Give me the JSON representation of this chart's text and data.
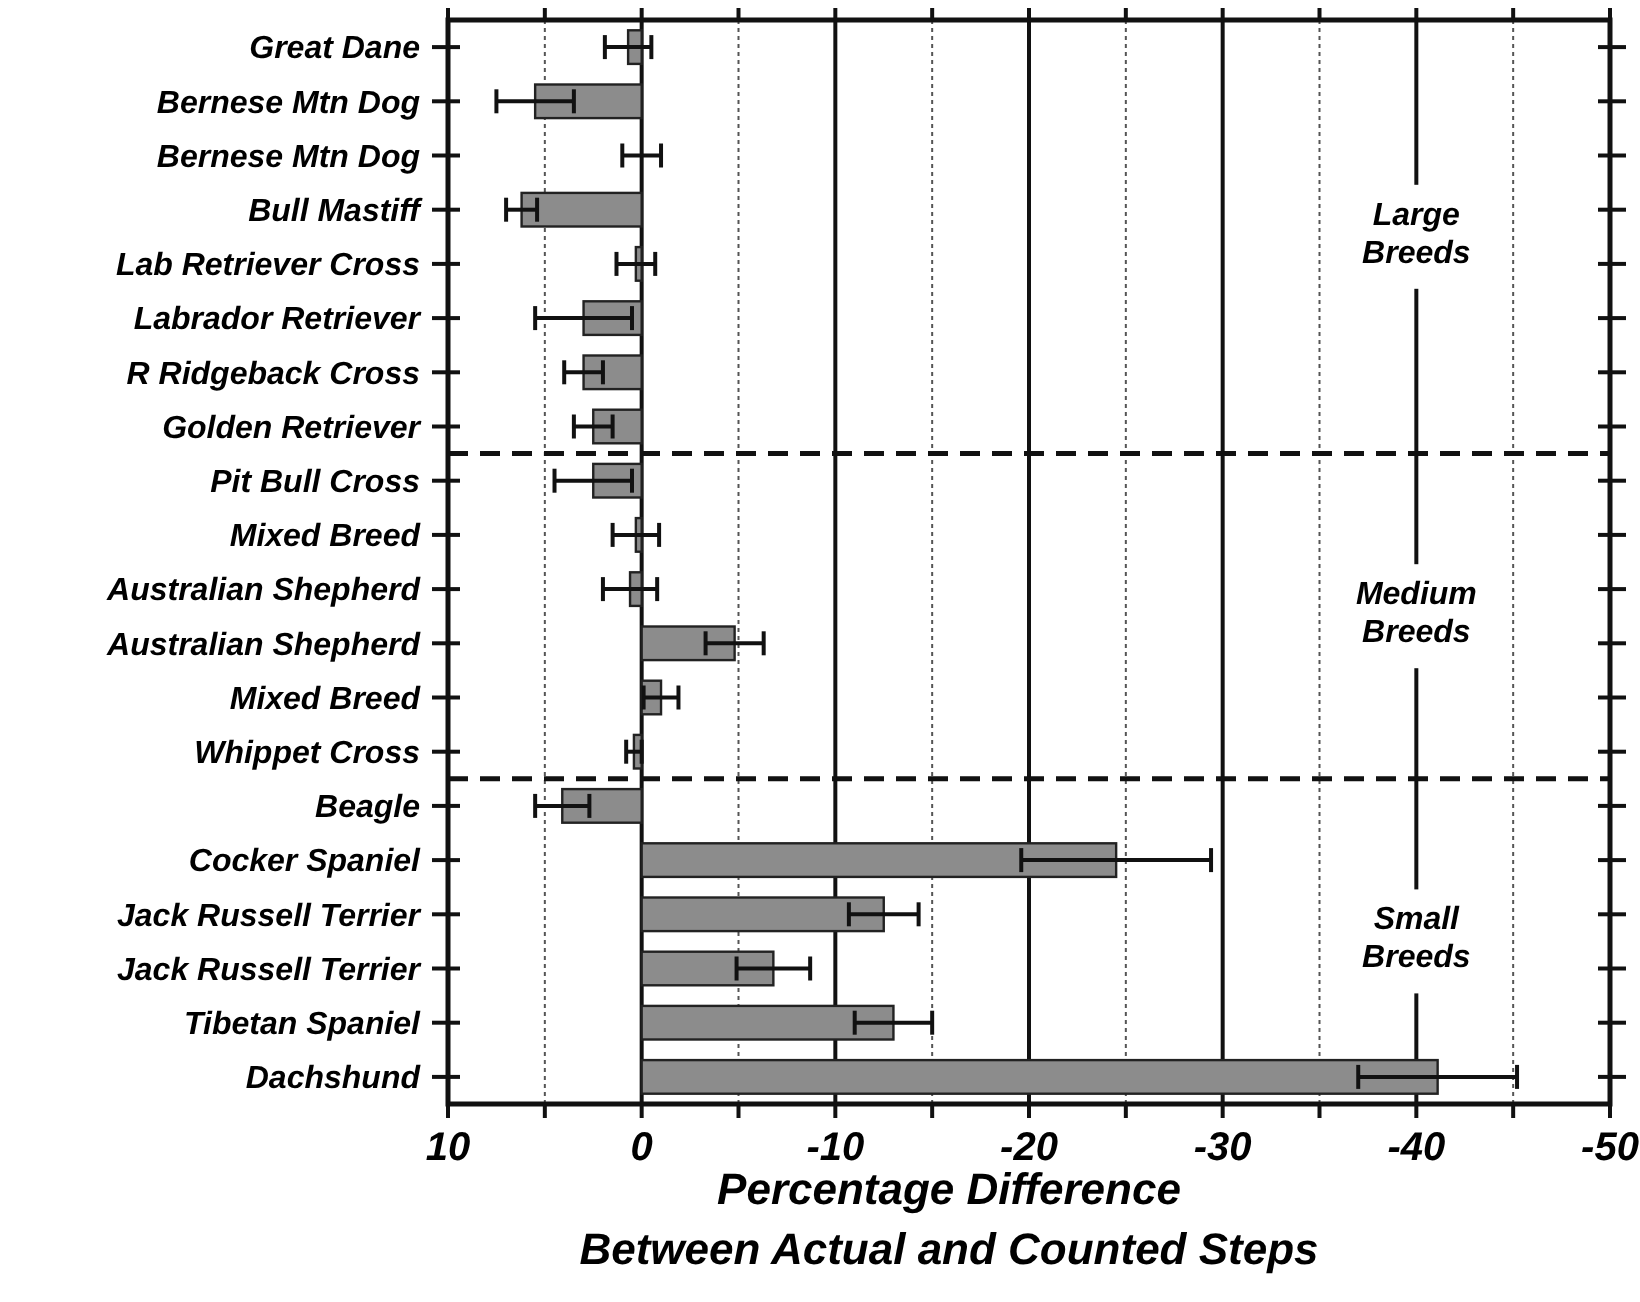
{
  "chart_data": {
    "type": "bar",
    "orientation": "horizontal",
    "xlabel": "Percentage Difference\nBetween Actual and Counted Steps",
    "categories": [
      "Great Dane",
      "Bernese Mtn Dog",
      "Bernese Mtn Dog",
      "Bull Mastiff",
      "Lab Retriever Cross",
      "Labrador Retriever",
      "R Ridgeback Cross",
      "Golden Retriever",
      "Pit Bull Cross",
      "Mixed Breed",
      "Australian Shepherd",
      "Australian Shepherd",
      "Mixed Breed",
      "Whippet Cross",
      "Beagle",
      "Cocker Spaniel",
      "Jack Russell Terrier",
      "Jack Russell Terrier",
      "Tibetan Spaniel",
      "Dachshund"
    ],
    "values": [
      0.7,
      5.5,
      0,
      6.2,
      0.3,
      3.0,
      3.0,
      2.5,
      2.5,
      0.3,
      0.6,
      -4.8,
      -1.0,
      0.4,
      4.1,
      -24.5,
      -12.5,
      -6.8,
      -13.0,
      -41.1
    ],
    "errors": [
      1.2,
      2.0,
      1.0,
      0.8,
      1.0,
      2.5,
      1.0,
      1.0,
      2.0,
      1.2,
      1.4,
      1.5,
      0.9,
      0.4,
      1.4,
      4.9,
      1.8,
      1.9,
      2.0,
      4.1
    ],
    "color": "#8c8c8c",
    "xlim": [
      10,
      -50
    ],
    "xticks": [
      10,
      {
        "value": 5,
        "label": null
      },
      0,
      {
        "value": -5,
        "label": null
      },
      -10,
      {
        "value": -15,
        "label": null
      },
      -20,
      {
        "value": -25,
        "label": null
      },
      -30,
      {
        "value": -35,
        "label": null
      },
      -40,
      {
        "value": -45,
        "label": null
      },
      -50
    ],
    "grid": "x",
    "annotations": [
      "Large\nBreeds",
      "Medium\nBreeds",
      "Small\nBreeds"
    ]
  }
}
